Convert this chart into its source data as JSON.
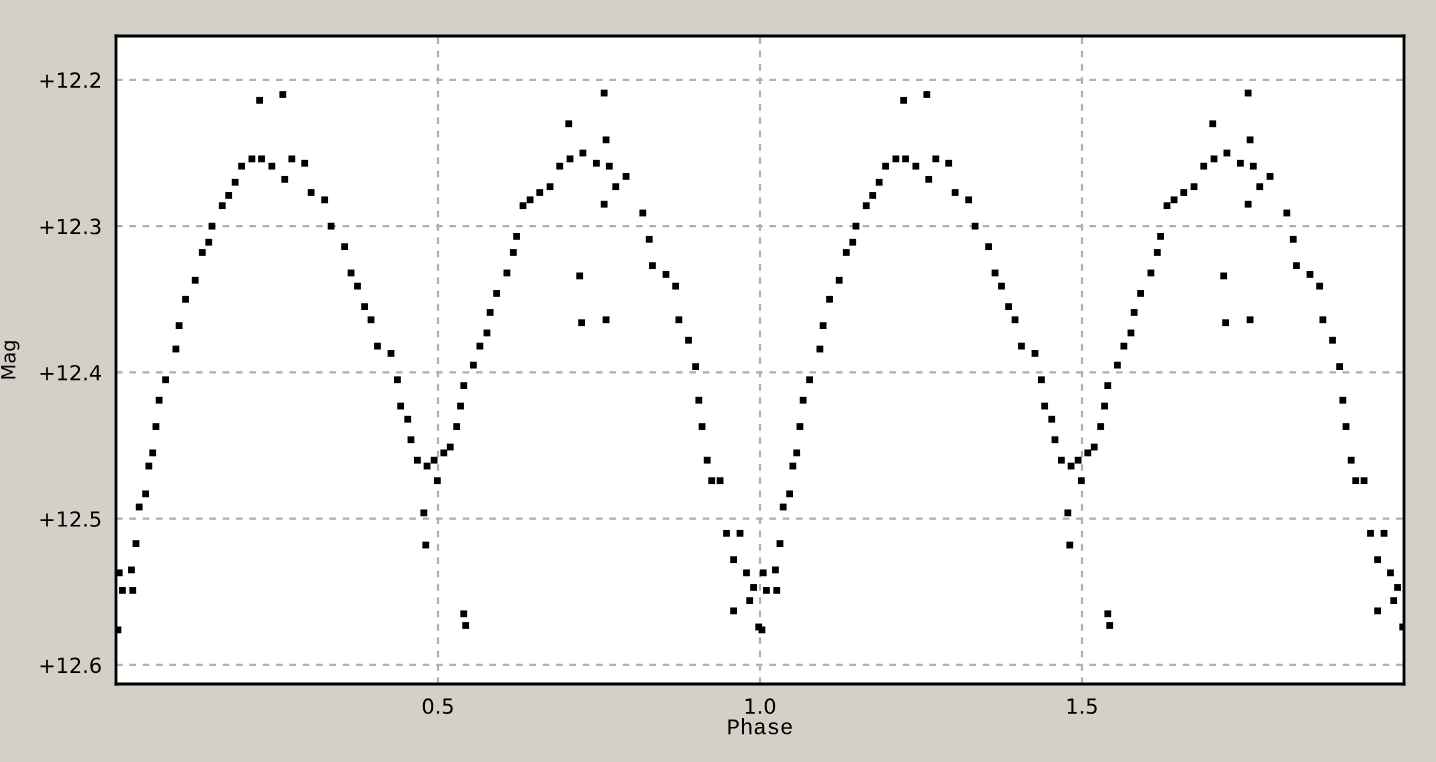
{
  "chart_data": {
    "type": "scatter",
    "xlabel": "Phase",
    "ylabel": "Mag",
    "xlim": [
      0,
      2
    ],
    "ylim": [
      12.613,
      12.17
    ],
    "xticks": [
      0.5,
      {
        "value": 1,
        "label": "1.0"
      },
      1.5
    ],
    "yticks": [
      {
        "value": 12.2,
        "label": "+12.2"
      },
      {
        "value": 12.3,
        "label": "+12.3"
      },
      {
        "value": 12.4,
        "label": "+12.4"
      },
      {
        "value": 12.5,
        "label": "+12.5"
      },
      {
        "value": 12.6,
        "label": "+12.6"
      }
    ],
    "grid": true,
    "marker": "square",
    "series": [
      {
        "color": "#000000",
        "x": [
          0.003,
          0.005,
          0.01,
          0.026,
          0.024,
          0.031,
          0.036,
          0.046,
          0.051,
          0.057,
          0.062,
          0.067,
          0.077,
          0.093,
          0.098,
          0.108,
          0.123,
          0.134,
          0.144,
          0.149,
          0.165,
          0.175,
          0.185,
          0.195,
          0.211,
          0.226,
          0.223,
          0.259,
          0.242,
          0.262,
          0.273,
          0.293,
          0.303,
          0.324,
          0.334,
          0.355,
          0.365,
          0.375,
          0.386,
          0.396,
          0.406,
          0.427,
          0.437,
          0.442,
          0.453,
          0.458,
          0.468,
          0.483,
          0.494,
          0.499,
          0.478,
          0.481,
          0.509,
          0.519,
          0.529,
          0.535,
          0.54,
          0.543,
          0.54,
          0.555,
          0.565,
          0.576,
          0.581,
          0.591,
          0.607,
          0.617,
          0.622,
          0.632,
          0.643,
          0.658,
          0.674,
          0.689,
          0.703,
          0.705,
          0.725,
          0.746,
          0.758,
          0.761,
          0.766,
          0.776,
          0.758,
          0.72,
          0.723,
          0.761,
          0.792,
          0.818,
          0.828,
          0.833,
          0.854,
          0.869,
          0.874,
          0.889,
          0.9,
          0.905,
          0.91,
          0.918,
          0.925,
          0.938,
          0.948,
          0.959,
          0.969,
          0.979,
          0.984,
          0.99,
          0.998,
          0.959
        ],
        "values": [
          12.576,
          12.537,
          12.549,
          12.549,
          12.535,
          12.517,
          12.492,
          12.483,
          12.464,
          12.455,
          12.437,
          12.419,
          12.405,
          12.384,
          12.368,
          12.35,
          12.337,
          12.318,
          12.311,
          12.3,
          12.286,
          12.279,
          12.27,
          12.259,
          12.254,
          12.254,
          12.214,
          12.21,
          12.259,
          12.268,
          12.254,
          12.257,
          12.277,
          12.282,
          12.3,
          12.314,
          12.332,
          12.341,
          12.355,
          12.364,
          12.382,
          12.387,
          12.405,
          12.423,
          12.432,
          12.446,
          12.46,
          12.464,
          12.46,
          12.474,
          12.496,
          12.518,
          12.455,
          12.451,
          12.437,
          12.423,
          12.565,
          12.573,
          12.409,
          12.395,
          12.382,
          12.373,
          12.359,
          12.346,
          12.332,
          12.318,
          12.307,
          12.286,
          12.282,
          12.277,
          12.273,
          12.259,
          12.23,
          12.254,
          12.25,
          12.257,
          12.209,
          12.241,
          12.259,
          12.273,
          12.285,
          12.334,
          12.366,
          12.364,
          12.266,
          12.291,
          12.309,
          12.327,
          12.333,
          12.341,
          12.364,
          12.378,
          12.396,
          12.419,
          12.437,
          12.46,
          12.474,
          12.474,
          12.51,
          12.528,
          12.51,
          12.537,
          12.556,
          12.547,
          12.574,
          12.563
        ]
      },
      {
        "color": "#000000",
        "x": [
          1.003,
          1.005,
          1.01,
          1.026,
          1.024,
          1.031,
          1.036,
          1.046,
          1.051,
          1.057,
          1.062,
          1.067,
          1.077,
          1.093,
          1.098,
          1.108,
          1.123,
          1.134,
          1.144,
          1.149,
          1.165,
          1.175,
          1.185,
          1.195,
          1.211,
          1.226,
          1.223,
          1.259,
          1.242,
          1.262,
          1.273,
          1.293,
          1.303,
          1.324,
          1.334,
          1.355,
          1.365,
          1.375,
          1.386,
          1.396,
          1.406,
          1.427,
          1.437,
          1.442,
          1.453,
          1.458,
          1.468,
          1.483,
          1.494,
          1.499,
          1.478,
          1.481,
          1.509,
          1.519,
          1.529,
          1.535,
          1.54,
          1.543,
          1.54,
          1.555,
          1.565,
          1.576,
          1.581,
          1.591,
          1.607,
          1.617,
          1.622,
          1.632,
          1.643,
          1.658,
          1.674,
          1.689,
          1.703,
          1.705,
          1.725,
          1.746,
          1.758,
          1.761,
          1.766,
          1.776,
          1.758,
          1.72,
          1.723,
          1.761,
          1.792,
          1.818,
          1.828,
          1.833,
          1.854,
          1.869,
          1.874,
          1.889,
          1.9,
          1.905,
          1.91,
          1.918,
          1.925,
          1.938,
          1.948,
          1.959,
          1.969,
          1.979,
          1.984,
          1.99,
          1.998,
          1.959
        ],
        "values": [
          12.576,
          12.537,
          12.549,
          12.549,
          12.535,
          12.517,
          12.492,
          12.483,
          12.464,
          12.455,
          12.437,
          12.419,
          12.405,
          12.384,
          12.368,
          12.35,
          12.337,
          12.318,
          12.311,
          12.3,
          12.286,
          12.279,
          12.27,
          12.259,
          12.254,
          12.254,
          12.214,
          12.21,
          12.259,
          12.268,
          12.254,
          12.257,
          12.277,
          12.282,
          12.3,
          12.314,
          12.332,
          12.341,
          12.355,
          12.364,
          12.382,
          12.387,
          12.405,
          12.423,
          12.432,
          12.446,
          12.46,
          12.464,
          12.46,
          12.474,
          12.496,
          12.518,
          12.455,
          12.451,
          12.437,
          12.423,
          12.565,
          12.573,
          12.409,
          12.395,
          12.382,
          12.373,
          12.359,
          12.346,
          12.332,
          12.318,
          12.307,
          12.286,
          12.282,
          12.277,
          12.273,
          12.259,
          12.23,
          12.254,
          12.25,
          12.257,
          12.209,
          12.241,
          12.259,
          12.273,
          12.285,
          12.334,
          12.366,
          12.364,
          12.266,
          12.291,
          12.309,
          12.327,
          12.333,
          12.341,
          12.364,
          12.378,
          12.396,
          12.419,
          12.437,
          12.46,
          12.474,
          12.474,
          12.51,
          12.528,
          12.51,
          12.537,
          12.556,
          12.547,
          12.574,
          12.563
        ]
      }
    ]
  }
}
